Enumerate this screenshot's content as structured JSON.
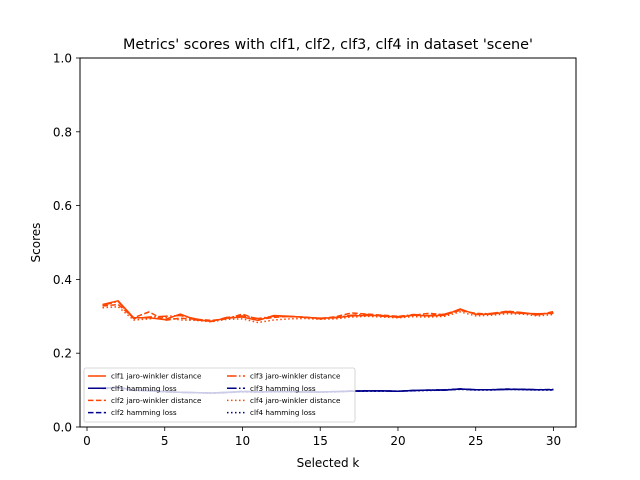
{
  "chart_data": {
    "type": "line",
    "title": "Metrics' scores with clf1, clf2, clf3, clf4 in dataset 'scene'",
    "xlabel": "Selected k",
    "ylabel": "Scores",
    "xlim": [
      -0.45,
      31.45
    ],
    "ylim": [
      0.0,
      1.0
    ],
    "xticks": [
      0,
      5,
      10,
      15,
      20,
      25,
      30
    ],
    "xtick_labels": [
      "0",
      "5",
      "10",
      "15",
      "20",
      "25",
      "30"
    ],
    "yticks": [
      0.0,
      0.2,
      0.4,
      0.6,
      0.8,
      1.0
    ],
    "ytick_labels": [
      "0.0",
      "0.2",
      "0.4",
      "0.6",
      "0.8",
      "1.0"
    ],
    "legend_position": "lower-left",
    "x": [
      1,
      2,
      3,
      4,
      5,
      6,
      7,
      8,
      9,
      10,
      11,
      12,
      13,
      14,
      15,
      16,
      17,
      18,
      19,
      20,
      21,
      22,
      23,
      24,
      25,
      26,
      27,
      28,
      29,
      30
    ],
    "series": [
      {
        "name": "clf1 jaro-winkler distance",
        "color": "#ff4500",
        "dash": "solid",
        "values": [
          0.332,
          0.342,
          0.296,
          0.296,
          0.291,
          0.306,
          0.29,
          0.287,
          0.295,
          0.298,
          0.289,
          0.302,
          0.3,
          0.297,
          0.295,
          0.296,
          0.301,
          0.302,
          0.302,
          0.297,
          0.303,
          0.301,
          0.303,
          0.32,
          0.305,
          0.306,
          0.311,
          0.308,
          0.307,
          0.308
        ]
      },
      {
        "name": "clf1 hamming loss",
        "color": "#00008b",
        "dash": "solid",
        "values": [
          0.105,
          0.108,
          0.1,
          0.098,
          0.096,
          0.094,
          0.093,
          0.092,
          0.094,
          0.096,
          0.095,
          0.096,
          0.096,
          0.095,
          0.095,
          0.096,
          0.097,
          0.098,
          0.098,
          0.097,
          0.099,
          0.1,
          0.1,
          0.103,
          0.101,
          0.101,
          0.102,
          0.102,
          0.101,
          0.101
        ]
      },
      {
        "name": "clf2 jaro-winkler distance",
        "color": "#ff4500",
        "dash": "dashed",
        "values": [
          0.328,
          0.332,
          0.296,
          0.312,
          0.289,
          0.295,
          0.292,
          0.289,
          0.293,
          0.306,
          0.291,
          0.297,
          0.3,
          0.298,
          0.294,
          0.299,
          0.309,
          0.306,
          0.303,
          0.3,
          0.303,
          0.308,
          0.304,
          0.316,
          0.308,
          0.306,
          0.314,
          0.31,
          0.303,
          0.313
        ]
      },
      {
        "name": "clf2 hamming loss",
        "color": "#00008b",
        "dash": "dashed",
        "values": [
          0.104,
          0.106,
          0.099,
          0.1,
          0.095,
          0.094,
          0.093,
          0.092,
          0.093,
          0.097,
          0.095,
          0.096,
          0.096,
          0.095,
          0.095,
          0.096,
          0.098,
          0.098,
          0.098,
          0.097,
          0.099,
          0.1,
          0.1,
          0.103,
          0.101,
          0.101,
          0.103,
          0.102,
          0.101,
          0.102
        ]
      },
      {
        "name": "clf3 jaro-winkler distance",
        "color": "#ff4500",
        "dash": "dashdot",
        "values": [
          0.33,
          0.34,
          0.294,
          0.298,
          0.3,
          0.302,
          0.293,
          0.286,
          0.297,
          0.301,
          0.294,
          0.3,
          0.299,
          0.297,
          0.293,
          0.297,
          0.303,
          0.305,
          0.3,
          0.299,
          0.305,
          0.302,
          0.306,
          0.318,
          0.306,
          0.308,
          0.313,
          0.31,
          0.305,
          0.31
        ]
      },
      {
        "name": "clf3 hamming loss",
        "color": "#00008b",
        "dash": "dashdot",
        "values": [
          0.105,
          0.107,
          0.1,
          0.099,
          0.096,
          0.094,
          0.093,
          0.092,
          0.094,
          0.096,
          0.095,
          0.096,
          0.096,
          0.095,
          0.095,
          0.096,
          0.097,
          0.098,
          0.098,
          0.097,
          0.099,
          0.1,
          0.101,
          0.103,
          0.101,
          0.101,
          0.102,
          0.102,
          0.101,
          0.101
        ]
      },
      {
        "name": "clf4 jaro-winkler distance",
        "color": "#ff4500",
        "dash": "dotted",
        "values": [
          0.323,
          0.326,
          0.29,
          0.293,
          0.298,
          0.29,
          0.289,
          0.285,
          0.292,
          0.293,
          0.283,
          0.29,
          0.293,
          0.294,
          0.292,
          0.293,
          0.298,
          0.3,
          0.298,
          0.296,
          0.299,
          0.298,
          0.3,
          0.312,
          0.301,
          0.303,
          0.307,
          0.306,
          0.301,
          0.305
        ]
      },
      {
        "name": "clf4 hamming loss",
        "color": "#00008b",
        "dash": "dotted",
        "values": [
          0.104,
          0.105,
          0.099,
          0.098,
          0.095,
          0.094,
          0.093,
          0.091,
          0.093,
          0.095,
          0.094,
          0.095,
          0.095,
          0.095,
          0.094,
          0.095,
          0.097,
          0.097,
          0.097,
          0.097,
          0.098,
          0.099,
          0.1,
          0.102,
          0.1,
          0.1,
          0.102,
          0.101,
          0.1,
          0.1
        ]
      }
    ]
  }
}
